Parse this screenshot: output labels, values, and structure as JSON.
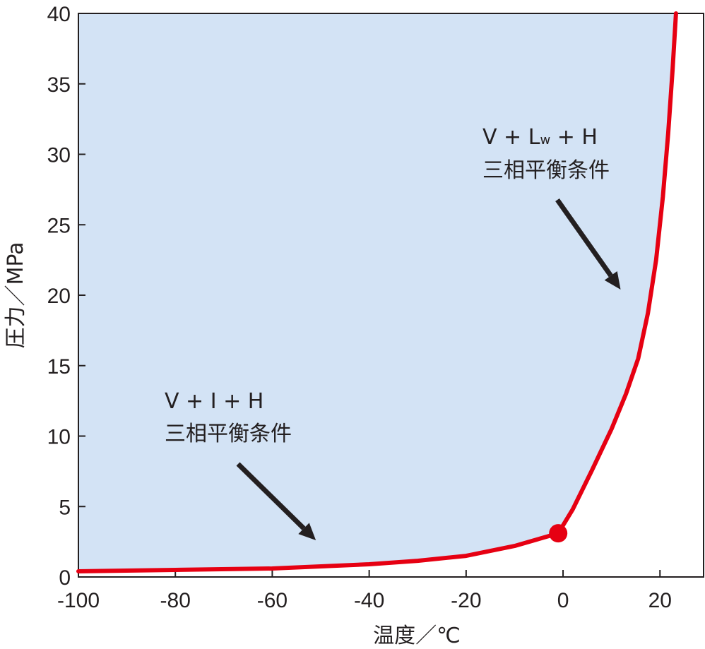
{
  "chart_data": {
    "type": "line",
    "xlabel": "温度／℃",
    "ylabel": "圧力／MPa",
    "xlim": [
      -100,
      29
    ],
    "ylim": [
      0,
      40
    ],
    "x_ticks": [
      -100,
      -80,
      -60,
      -40,
      -20,
      0,
      20
    ],
    "y_ticks": [
      0,
      5,
      10,
      15,
      20,
      25,
      30,
      35,
      40
    ],
    "x_tick_labels": [
      "-100",
      "-80",
      "-60",
      "-40",
      "-20",
      "0",
      "20"
    ],
    "y_tick_labels": [
      "0",
      "5",
      "10",
      "15",
      "20",
      "25",
      "30",
      "35",
      "40"
    ],
    "grid": false,
    "series": [
      {
        "color": "#e60012",
        "points": [
          {
            "x": -100,
            "y": 0.4
          },
          {
            "x": -80,
            "y": 0.5
          },
          {
            "x": -60,
            "y": 0.6
          },
          {
            "x": -40,
            "y": 0.9
          },
          {
            "x": -30,
            "y": 1.15
          },
          {
            "x": -20,
            "y": 1.5
          },
          {
            "x": -10,
            "y": 2.2
          },
          {
            "x": -1,
            "y": 3.1
          },
          {
            "x": 2,
            "y": 4.8
          },
          {
            "x": 6,
            "y": 7.6
          },
          {
            "x": 10,
            "y": 10.5
          },
          {
            "x": 13,
            "y": 13.0
          },
          {
            "x": 15.5,
            "y": 15.5
          },
          {
            "x": 17.5,
            "y": 18.7
          },
          {
            "x": 19.2,
            "y": 22.5
          },
          {
            "x": 20.6,
            "y": 27.0
          },
          {
            "x": 21.7,
            "y": 31.5
          },
          {
            "x": 22.6,
            "y": 36.0
          },
          {
            "x": 23.3,
            "y": 40.0
          }
        ]
      }
    ],
    "fill_color": "#d3e3f5",
    "quadruple_point": {
      "x": -1,
      "y": 3.1,
      "color": "#e60012"
    },
    "annotations": [
      {
        "line1": "V + I + H",
        "line2": "三相平衡条件",
        "arrow_to": {
          "x": -51,
          "y": 0.8
        }
      },
      {
        "line1_main": "V + L",
        "line1_sub": "w",
        "line1_tail": " + H",
        "line2": "三相平衡条件",
        "arrow_to": {
          "x": 14.5,
          "y": 20.2
        }
      }
    ]
  }
}
